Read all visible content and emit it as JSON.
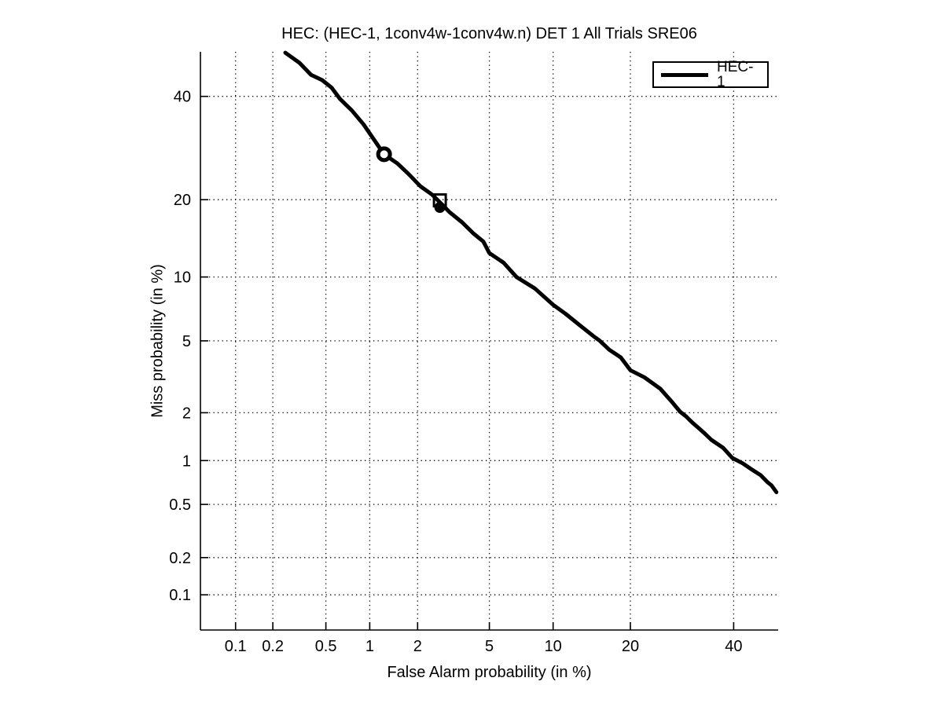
{
  "title": "HEC: (HEC-1, 1conv4w-1conv4w.n) DET 1 All Trials SRE06",
  "chart_data": {
    "type": "line",
    "subtype": "DET-curve (normal-deviate / probit scale on both axes)",
    "title": "HEC: (HEC-1, 1conv4w-1conv4w.n) DET 1 All Trials SRE06",
    "xlabel": "False Alarm probability (in %)",
    "ylabel": "Miss probability (in %)",
    "x_scale": "probit",
    "y_scale": "probit",
    "xlim": [
      0.05,
      50
    ],
    "ylim": [
      0.05,
      50
    ],
    "x_ticks": [
      0.1,
      0.2,
      0.5,
      1,
      2,
      5,
      10,
      20,
      40
    ],
    "x_tick_labels": [
      "0.1",
      "0.2",
      "0.5",
      "1",
      "2",
      "5",
      "10",
      "20",
      "40"
    ],
    "y_ticks": [
      0.1,
      0.2,
      0.5,
      1,
      2,
      5,
      10,
      20,
      40
    ],
    "y_tick_labels": [
      "0.1",
      "0.2",
      "0.5",
      "1",
      "2",
      "5",
      "10",
      "20",
      "40"
    ],
    "grid": "dotted",
    "background": "#ffffff",
    "legend": {
      "position": "top-right",
      "entries": [
        "HEC-1"
      ]
    },
    "series": [
      {
        "name": "HEC-1",
        "color": "#000000",
        "line_width": 5,
        "points": [
          [
            0.25,
            49.8
          ],
          [
            0.32,
            47.5
          ],
          [
            0.39,
            44.8
          ],
          [
            0.47,
            43.6
          ],
          [
            0.55,
            41.9
          ],
          [
            0.63,
            39.4
          ],
          [
            0.76,
            36.9
          ],
          [
            0.91,
            34.0
          ],
          [
            1.07,
            30.8
          ],
          [
            1.24,
            28.0
          ],
          [
            1.5,
            26.3
          ],
          [
            1.77,
            24.3
          ],
          [
            2.08,
            22.2
          ],
          [
            2.44,
            20.8
          ],
          [
            2.7,
            19.6
          ],
          [
            3.06,
            18.1
          ],
          [
            3.59,
            16.6
          ],
          [
            4.12,
            15.1
          ],
          [
            4.66,
            14.0
          ],
          [
            5.0,
            12.6
          ],
          [
            5.9,
            11.5
          ],
          [
            6.8,
            10.0
          ],
          [
            8.3,
            8.9
          ],
          [
            10.0,
            7.5
          ],
          [
            11.3,
            6.8
          ],
          [
            13.1,
            5.9
          ],
          [
            14.6,
            5.3
          ],
          [
            15.5,
            5.0
          ],
          [
            16.8,
            4.5
          ],
          [
            18.5,
            4.1
          ],
          [
            20.0,
            3.5
          ],
          [
            22.3,
            3.2
          ],
          [
            25.1,
            2.76
          ],
          [
            27.3,
            2.31
          ],
          [
            28.8,
            2.03
          ],
          [
            30.0,
            1.9
          ],
          [
            31.1,
            1.76
          ],
          [
            33.5,
            1.52
          ],
          [
            35.2,
            1.36
          ],
          [
            37.7,
            1.21
          ],
          [
            39.7,
            1.04
          ],
          [
            42.0,
            0.96
          ],
          [
            44.1,
            0.87
          ],
          [
            46.0,
            0.8
          ],
          [
            47.5,
            0.72
          ],
          [
            48.5,
            0.68
          ],
          [
            49.6,
            0.61
          ]
        ]
      }
    ],
    "markers": [
      {
        "shape": "circle-open-thick",
        "x": 1.24,
        "y": 28.0,
        "color": "#000000"
      },
      {
        "shape": "square-open",
        "x": 2.7,
        "y": 19.9,
        "color": "#000000"
      },
      {
        "shape": "circle-filled",
        "x": 2.7,
        "y": 18.8,
        "color": "#000000"
      }
    ]
  }
}
